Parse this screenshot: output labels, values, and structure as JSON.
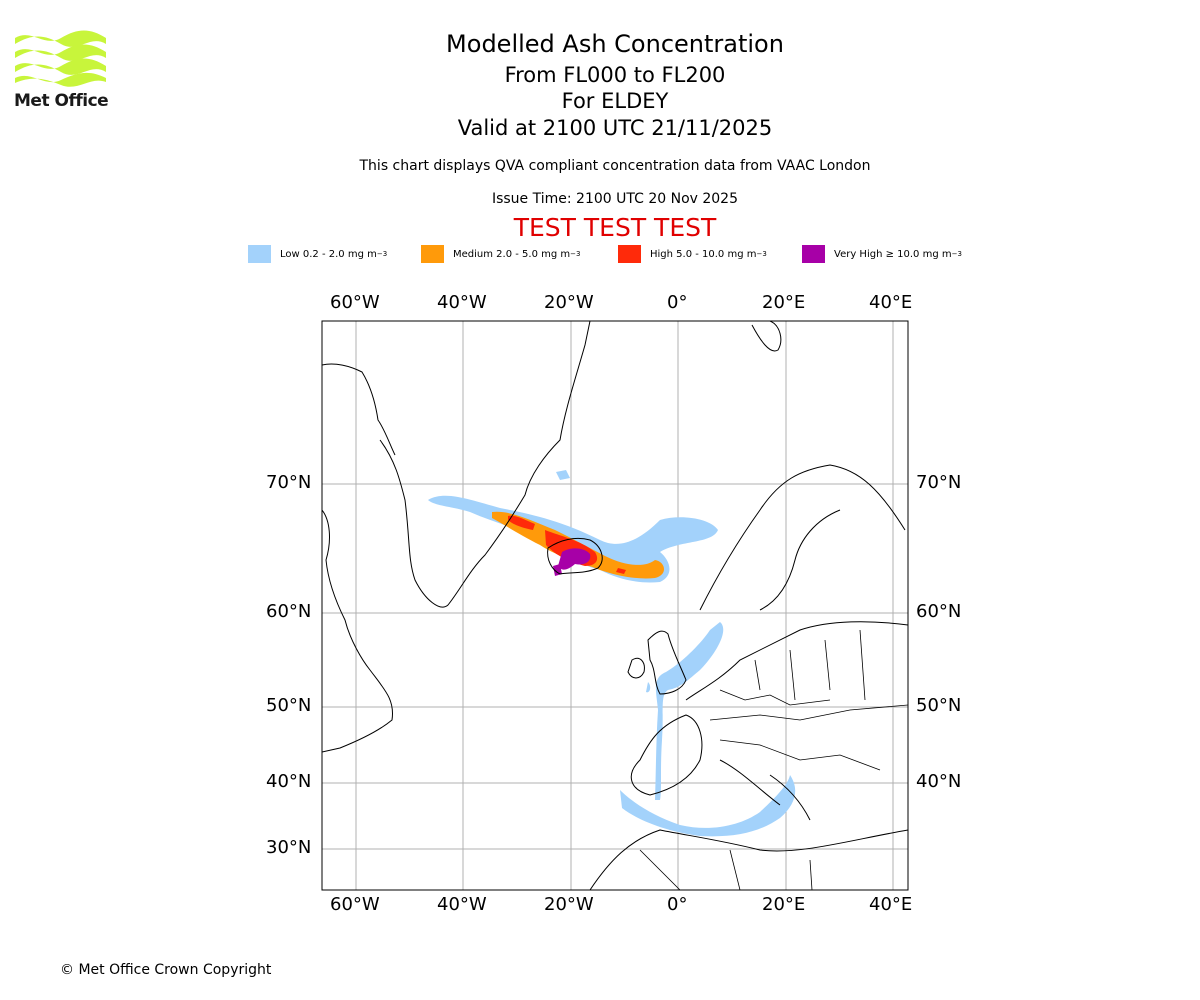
{
  "header": {
    "title": "Modelled Ash Concentration",
    "level_range": "From FL000 to FL200",
    "location": "For ELDEY",
    "valid_time": "Valid at 2100 UTC 21/11/2025",
    "description": "This chart displays QVA compliant concentration data from VAAC London",
    "issue_time": "Issue Time: 2100 UTC 20 Nov 2025",
    "test_banner": "TEST TEST TEST"
  },
  "logo": {
    "text": "Met Office",
    "color": "#c8f53b"
  },
  "legend": [
    {
      "label": "Low 0.2 - 2.0 mg m",
      "unit_sup": "−3",
      "color": "#a3d2fb"
    },
    {
      "label": "Medium 2.0 - 5.0 mg m",
      "unit_sup": "−3",
      "color": "#ff9a0a"
    },
    {
      "label": "High 5.0 - 10.0 mg m",
      "unit_sup": "−3",
      "color": "#ff2a0a"
    },
    {
      "label": "Very High  ≥  10.0 mg m",
      "unit_sup": "−3",
      "color": "#a700a7"
    }
  ],
  "axes": {
    "longitude": [
      "60°W",
      "40°W",
      "20°W",
      "0°",
      "20°E",
      "40°E"
    ],
    "latitude": [
      "70°N",
      "60°N",
      "50°N",
      "40°N",
      "30°N"
    ]
  },
  "footer": {
    "copyright": "© Met Office Crown Copyright"
  },
  "colors": {
    "test_banner": "#e00000",
    "grid": "#b0b0b0"
  }
}
